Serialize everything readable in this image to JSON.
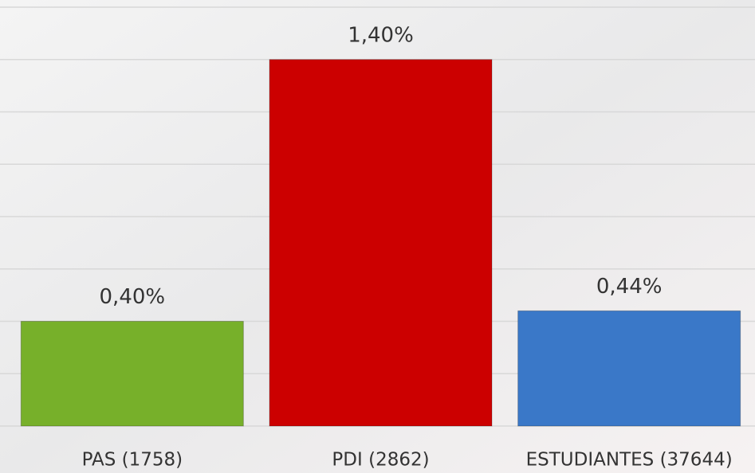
{
  "chart_data": {
    "type": "bar",
    "categories": [
      "PAS (1758)",
      "PDI (2862)",
      "ESTUDIANTES (37644)"
    ],
    "values": [
      0.4,
      1.4,
      0.44
    ],
    "value_labels": [
      "0,40%",
      "1,40%",
      "0,44%"
    ],
    "colors": [
      "#77b02a",
      "#cc0000",
      "#3a78c8"
    ],
    "ylim": [
      0,
      1.6
    ],
    "yticks": [
      0,
      0.2,
      0.4,
      0.6,
      0.8,
      1.0,
      1.2,
      1.4,
      1.6
    ],
    "grid": true
  }
}
